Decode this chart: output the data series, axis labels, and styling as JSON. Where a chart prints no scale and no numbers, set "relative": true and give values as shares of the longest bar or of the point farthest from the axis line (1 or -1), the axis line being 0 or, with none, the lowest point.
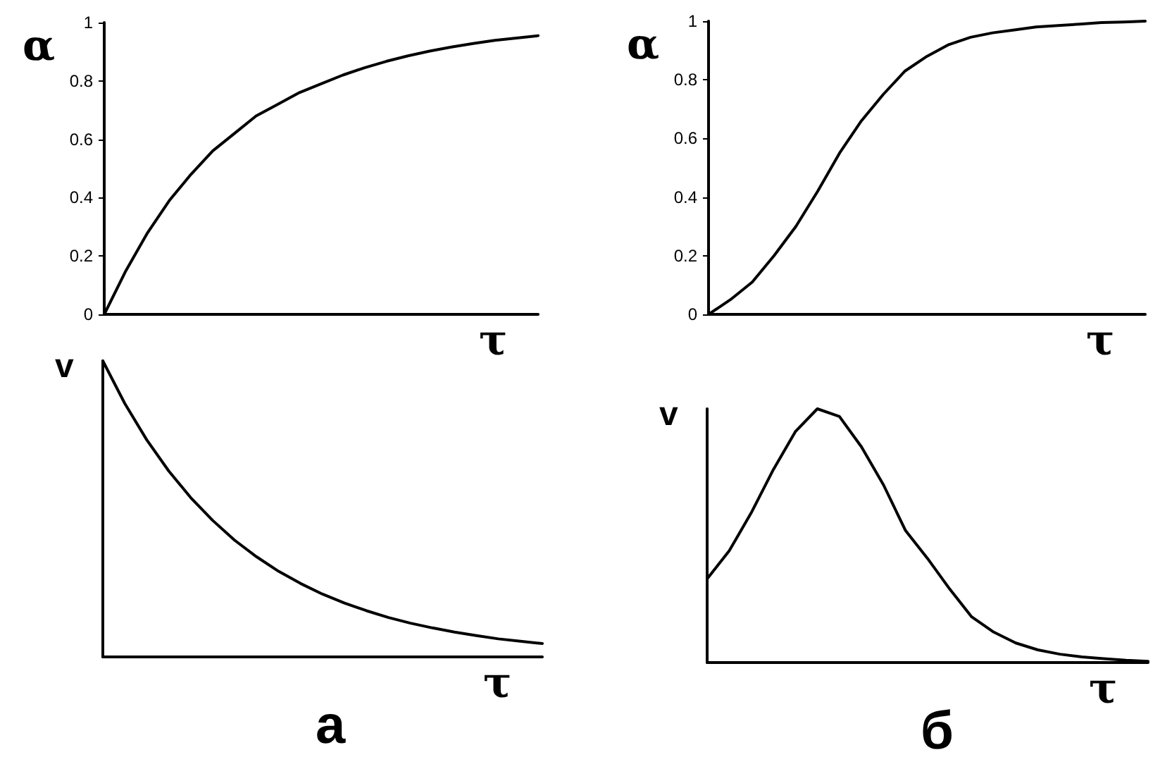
{
  "chart_data": [
    {
      "type": "line",
      "ylabel": "α",
      "xlabel": "τ",
      "categories": [
        null,
        null,
        null,
        null,
        null,
        null,
        null,
        null,
        null,
        null,
        null,
        null,
        null,
        null,
        null,
        null,
        null,
        null,
        null,
        null,
        null
      ],
      "series": [
        {
          "color": "#000000",
          "values": [
            0,
            0.15,
            0.28,
            0.39,
            0.48,
            0.56,
            0.62,
            0.68,
            0.72,
            0.76,
            0.79,
            0.82,
            0.845,
            0.867,
            0.886,
            0.902,
            0.916,
            0.928,
            0.939,
            0.947,
            0.955
          ]
        }
      ],
      "ylim": [
        0,
        1
      ],
      "yticks": [
        0,
        0.2,
        0.4,
        0.6,
        0.8,
        1
      ],
      "tick_labels": "y",
      "grid": false,
      "marker": "none",
      "line_style": "solid"
    },
    {
      "type": "line",
      "ylabel": "α",
      "xlabel": "τ",
      "categories": [
        null,
        null,
        null,
        null,
        null,
        null,
        null,
        null,
        null,
        null,
        null,
        null,
        null,
        null,
        null,
        null,
        null,
        null,
        null,
        null,
        null
      ],
      "series": [
        {
          "color": "#000000",
          "values": [
            0,
            0.05,
            0.11,
            0.2,
            0.3,
            0.42,
            0.55,
            0.66,
            0.75,
            0.83,
            0.88,
            0.92,
            0.945,
            0.96,
            0.97,
            0.98,
            0.985,
            0.99,
            0.995,
            0.997,
            1
          ]
        }
      ],
      "ylim": [
        0,
        1
      ],
      "yticks": [
        0,
        0.2,
        0.4,
        0.6,
        0.8,
        1
      ],
      "tick_labels": "y",
      "grid": false,
      "marker": "none",
      "line_style": "solid"
    },
    {
      "type": "line",
      "ylabel": "v",
      "xlabel": "τ",
      "annotations": [
        "а"
      ],
      "relative": true,
      "categories": [
        null,
        null,
        null,
        null,
        null,
        null,
        null,
        null,
        null,
        null,
        null,
        null,
        null,
        null,
        null,
        null,
        null,
        null,
        null,
        null,
        null
      ],
      "series": [
        {
          "color": "#000000",
          "values": [
            1,
            0.856,
            0.733,
            0.628,
            0.538,
            0.461,
            0.394,
            0.338,
            0.289,
            0.248,
            0.212,
            0.182,
            0.156,
            0.133,
            0.114,
            0.098,
            0.084,
            0.072,
            0.061,
            0.053,
            0.045
          ]
        }
      ],
      "tick_labels": false,
      "grid": false,
      "marker": "none",
      "line_style": "solid"
    },
    {
      "type": "line",
      "ylabel": "v",
      "xlabel": "τ",
      "annotations": [
        "б"
      ],
      "relative": true,
      "categories": [
        null,
        null,
        null,
        null,
        null,
        null,
        null,
        null,
        null,
        null,
        null,
        null,
        null,
        null,
        null,
        null,
        null,
        null,
        null,
        null,
        null
      ],
      "series": [
        {
          "color": "#000000",
          "values": [
            0.33,
            0.44,
            0.59,
            0.76,
            0.91,
            1,
            0.97,
            0.85,
            0.7,
            0.52,
            0.41,
            0.29,
            0.18,
            0.12,
            0.077,
            0.05,
            0.033,
            0.022,
            0.015,
            0.009,
            0.005
          ]
        }
      ],
      "tick_labels": false,
      "grid": false,
      "marker": "none",
      "line_style": "solid"
    }
  ]
}
